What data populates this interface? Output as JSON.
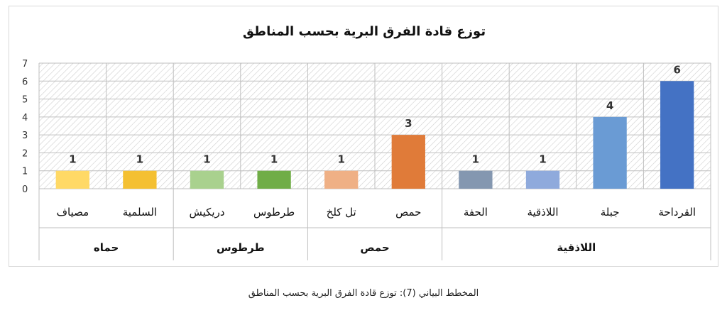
{
  "chart_data": {
    "type": "bar",
    "title": "توزع قادة الفرق البرية بحسب المناطق",
    "categories": [
      "القرداحة",
      "جبلة",
      "اللاذقية",
      "الحفة",
      "حمص",
      "تل كلخ",
      "طرطوس",
      "دريكيش",
      "السلمية",
      "مصياف"
    ],
    "values": [
      6,
      4,
      1,
      1,
      3,
      1,
      1,
      1,
      1,
      1
    ],
    "value_labels": [
      "6",
      "4",
      "1",
      "1",
      "3",
      "1",
      "1",
      "1",
      "1",
      "1"
    ],
    "bar_colors": [
      "#4472C4",
      "#6A9BD4",
      "#8FAADC",
      "#8497B0",
      "#E07B39",
      "#EFB085",
      "#70AD47",
      "#A9D18E",
      "#F4C032",
      "#FFD966"
    ],
    "groups": [
      {
        "label": "اللاذقية",
        "span": 4
      },
      {
        "label": "حمص",
        "span": 2
      },
      {
        "label": "طرطوس",
        "span": 2
      },
      {
        "label": "حماه",
        "span": 2
      }
    ],
    "ylim": [
      0,
      7
    ],
    "yticks": [
      "0",
      "1",
      "2",
      "3",
      "4",
      "5",
      "6",
      "7"
    ],
    "grid": true,
    "legend": "none",
    "xlabel": "",
    "ylabel": ""
  },
  "caption": "المخطط البياني (7): توزع قادة الفرق البرية بحسب المناطق"
}
